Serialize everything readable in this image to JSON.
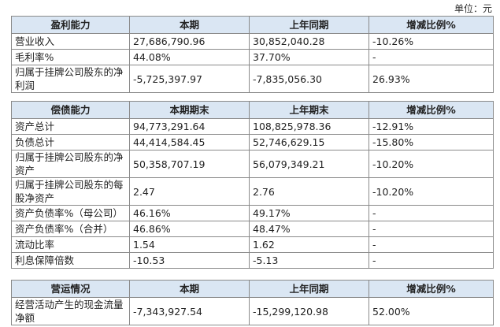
{
  "unit_label": "单位：元",
  "table1": {
    "headers": [
      "盈利能力",
      "本期",
      "上年同期",
      "增减比例%"
    ],
    "rows": [
      {
        "label": "营业收入",
        "current": "27,686,790.96",
        "prior": "30,852,040.28",
        "change": "-10.26%"
      },
      {
        "label": "毛利率%",
        "current": "44.08%",
        "prior": "37.70%",
        "change": "-"
      },
      {
        "label": "归属于挂牌公司股东的净利润",
        "current": "-5,725,397.97",
        "prior": "-7,835,056.30",
        "change": "26.93%"
      }
    ]
  },
  "table2": {
    "headers": [
      "偿债能力",
      "本期期末",
      "上年期末",
      "增减比例%"
    ],
    "rows": [
      {
        "label": "资产总计",
        "current": "94,773,291.64",
        "prior": "108,825,978.36",
        "change": "-12.91%"
      },
      {
        "label": "负债总计",
        "current": "44,414,584.45",
        "prior": "52,746,629.15",
        "change": "-15.80%"
      },
      {
        "label": "归属于挂牌公司股东的净资产",
        "current": "50,358,707.19",
        "prior": "56,079,349.21",
        "change": "-10.20%"
      },
      {
        "label": "归属于挂牌公司股东的每股净资产",
        "current": "2.47",
        "prior": "2.76",
        "change": "-10.20%"
      },
      {
        "label": "资产负债率%（母公司）",
        "current": "46.16%",
        "prior": "49.17%",
        "change": "-"
      },
      {
        "label": "资产负债率%（合并）",
        "current": "46.86%",
        "prior": "48.47%",
        "change": "-"
      },
      {
        "label": "流动比率",
        "current": "1.54",
        "prior": "1.62",
        "change": "-"
      },
      {
        "label": "利息保障倍数",
        "current": "-10.53",
        "prior": "-5.13",
        "change": "-"
      }
    ]
  },
  "table3": {
    "headers": [
      "营运情况",
      "本期",
      "上年同期",
      "增减比例%"
    ],
    "rows": [
      {
        "label": "经营活动产生的现金流量净额",
        "current": "-7,343,927.54",
        "prior": "-15,299,120.98",
        "change": "52.00%"
      }
    ]
  }
}
